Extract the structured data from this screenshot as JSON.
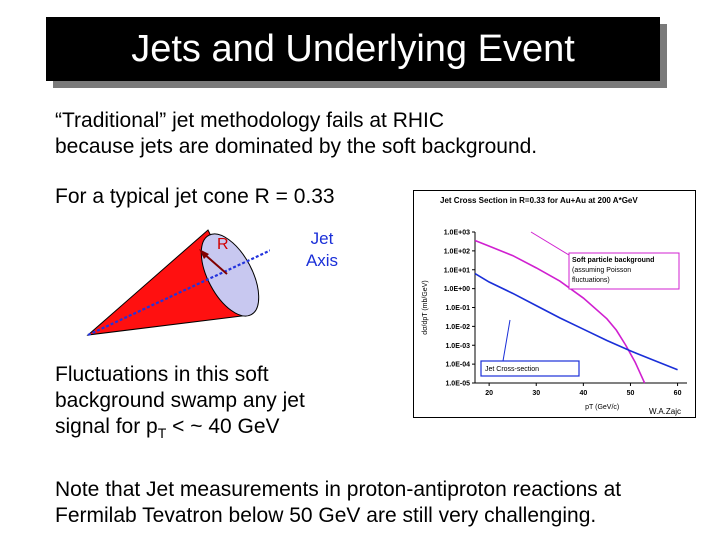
{
  "slide": {
    "title": "Jets and Underlying Event",
    "intro_line1": "“Traditional” jet methodology fails at RHIC",
    "intro_line2": "because jets are dominated by the soft background.",
    "typical": "For a typical jet cone R = 0.33",
    "cone_labels": {
      "r": "R",
      "jet_line1": "Jet",
      "jet_line2": "Axis"
    },
    "fluct_line1": "Fluctuations in this soft",
    "fluct_line2": "background swamp any jet",
    "fluct_line3_prefix": "signal for p",
    "fluct_line3_sub": "T",
    "fluct_line3_suffix": " < ~ 40 GeV",
    "note_line1": "Note that Jet measurements in proton-antiproton reactions at",
    "note_line2": "Fermilab Tevatron below 50 GeV are still very challenging."
  },
  "chart_data": {
    "type": "line",
    "title": "Jet Cross Section in R=0.33 for Au+Au at 200 A*GeV",
    "xlabel": "pT (GeV/c)",
    "ylabel": "dσ/dpT (mb/GeV)",
    "x_ticks": [
      "20",
      "30",
      "40",
      "50",
      "60"
    ],
    "y_ticks": [
      "1.0E+03",
      "1.0E+02",
      "1.0E+01",
      "1.0E+00",
      "1.0E-01",
      "1.0E-02",
      "1.0E-03",
      "1.0E-04",
      "1.0E-05"
    ],
    "xlim": [
      17,
      62
    ],
    "ylim_log10": [
      -5,
      3
    ],
    "y_scale": "log",
    "series": [
      {
        "name": "Soft particle background (assuming Poisson fluctuations)",
        "color": "#d020d0",
        "x": [
          17,
          20,
          25,
          30,
          35,
          40,
          45,
          47,
          49,
          51,
          53
        ],
        "log10_y": [
          2.55,
          2.25,
          1.75,
          1.1,
          0.4,
          -0.5,
          -1.6,
          -2.2,
          -3.0,
          -3.9,
          -5.0
        ]
      },
      {
        "name": "Jet Cross-section",
        "color": "#1a2fd8",
        "x": [
          17,
          20,
          25,
          30,
          35,
          40,
          45,
          50,
          55,
          60
        ],
        "log10_y": [
          0.8,
          0.35,
          -0.25,
          -0.9,
          -1.55,
          -2.15,
          -2.75,
          -3.3,
          -3.8,
          -4.3
        ]
      }
    ],
    "annotations": {
      "soft_line1": "Soft particle background",
      "soft_line2": "(assuming Poisson",
      "soft_line3": "fluctuations)",
      "jet": "Jet Cross-section",
      "credit": "W.A.Zajc"
    },
    "grid": false,
    "legend": "none"
  }
}
